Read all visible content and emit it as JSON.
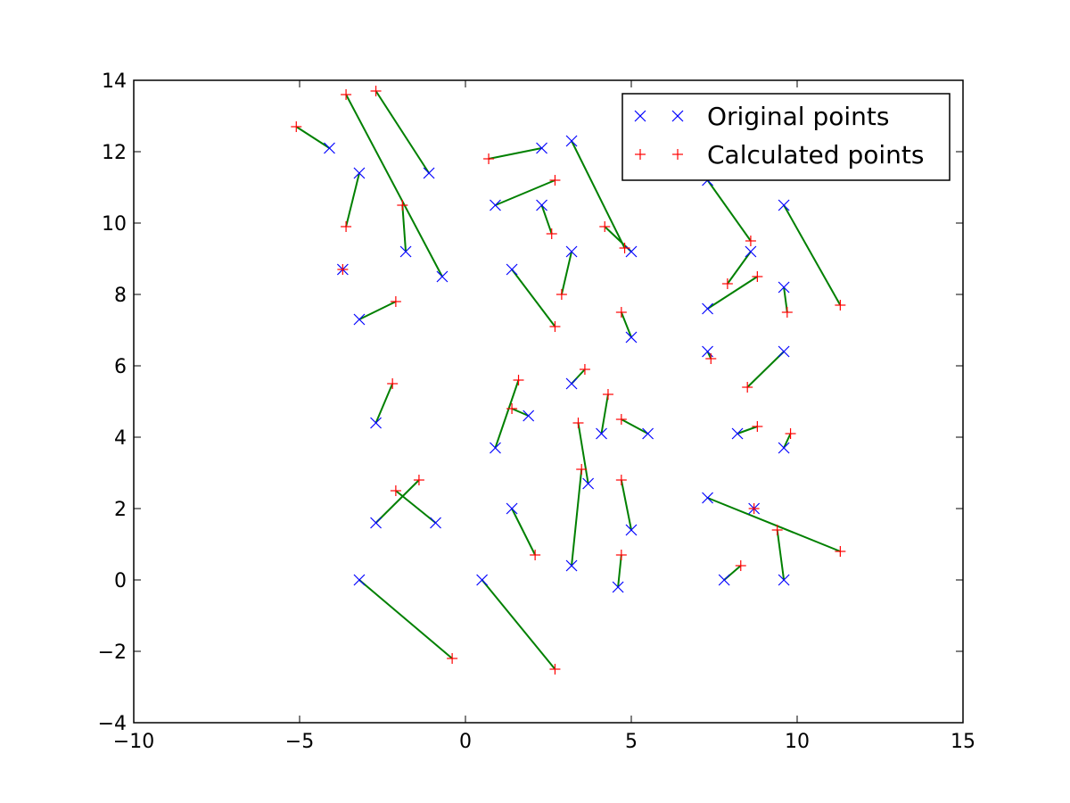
{
  "chart_data": {
    "type": "scatter",
    "title": "",
    "xlabel": "",
    "ylabel": "",
    "xlim": [
      -10,
      15
    ],
    "ylim": [
      -4,
      14
    ],
    "xticks": [
      -10,
      -5,
      0,
      5,
      10,
      15
    ],
    "yticks": [
      -4,
      -2,
      0,
      2,
      4,
      6,
      8,
      10,
      12,
      14
    ],
    "xtick_labels": [
      "−10",
      "−5",
      "0",
      "5",
      "10",
      "15"
    ],
    "ytick_labels": [
      "−4",
      "−2",
      "0",
      "2",
      "4",
      "6",
      "8",
      "10",
      "12",
      "14"
    ],
    "grid": false,
    "legend": {
      "position": "top-right",
      "entries": [
        "Original points",
        "Calculated points"
      ]
    },
    "colors": {
      "original": "#0000ff",
      "calculated": "#ff0000",
      "connector": "#008000"
    },
    "markers": {
      "original": "x",
      "calculated": "+"
    },
    "series": [
      {
        "name": "Original points",
        "points": [
          [
            -4.1,
            12.1
          ],
          [
            -3.2,
            11.4
          ],
          [
            -1.1,
            11.4
          ],
          [
            -1.8,
            9.2
          ],
          [
            -0.7,
            8.5
          ],
          [
            -3.7,
            8.7
          ],
          [
            -3.2,
            7.3
          ],
          [
            -2.7,
            4.4
          ],
          [
            -2.7,
            1.6
          ],
          [
            -0.9,
            1.6
          ],
          [
            -3.2,
            0.0
          ],
          [
            0.5,
            0.0
          ],
          [
            0.9,
            10.5
          ],
          [
            2.3,
            12.1
          ],
          [
            3.2,
            12.3
          ],
          [
            2.3,
            10.5
          ],
          [
            1.4,
            8.7
          ],
          [
            3.2,
            9.2
          ],
          [
            5.0,
            9.2
          ],
          [
            5.0,
            6.8
          ],
          [
            3.2,
            5.5
          ],
          [
            0.9,
            3.7
          ],
          [
            1.9,
            4.6
          ],
          [
            4.1,
            4.1
          ],
          [
            5.5,
            4.1
          ],
          [
            3.7,
            2.7
          ],
          [
            1.4,
            2.0
          ],
          [
            3.2,
            0.4
          ],
          [
            5.0,
            1.4
          ],
          [
            4.6,
            -0.2
          ],
          [
            7.3,
            11.2
          ],
          [
            9.6,
            10.5
          ],
          [
            8.6,
            9.2
          ],
          [
            7.3,
            7.6
          ],
          [
            9.6,
            8.2
          ],
          [
            7.3,
            6.4
          ],
          [
            9.6,
            6.4
          ],
          [
            8.2,
            4.1
          ],
          [
            9.6,
            3.7
          ],
          [
            7.3,
            2.3
          ],
          [
            8.7,
            2.0
          ],
          [
            7.8,
            0.0
          ],
          [
            9.6,
            0.0
          ]
        ]
      },
      {
        "name": "Calculated points",
        "points": [
          [
            -5.1,
            12.7
          ],
          [
            -3.6,
            9.9
          ],
          [
            -2.7,
            13.7
          ],
          [
            -1.9,
            10.5
          ],
          [
            -3.6,
            13.6
          ],
          [
            -3.7,
            8.7
          ],
          [
            -2.1,
            7.8
          ],
          [
            -2.2,
            5.5
          ],
          [
            -1.4,
            2.8
          ],
          [
            -2.1,
            2.5
          ],
          [
            -0.4,
            -2.2
          ],
          [
            2.7,
            -2.5
          ],
          [
            2.7,
            11.2
          ],
          [
            0.7,
            11.8
          ],
          [
            4.8,
            9.3
          ],
          [
            2.6,
            9.7
          ],
          [
            2.7,
            7.1
          ],
          [
            2.9,
            8.0
          ],
          [
            4.2,
            9.9
          ],
          [
            4.7,
            7.5
          ],
          [
            3.6,
            5.9
          ],
          [
            1.6,
            5.6
          ],
          [
            1.4,
            4.8
          ],
          [
            4.3,
            5.2
          ],
          [
            4.7,
            4.5
          ],
          [
            3.4,
            4.4
          ],
          [
            2.1,
            0.7
          ],
          [
            3.5,
            3.1
          ],
          [
            4.7,
            2.8
          ],
          [
            4.7,
            0.7
          ],
          [
            8.6,
            9.5
          ],
          [
            11.3,
            7.7
          ],
          [
            7.9,
            8.3
          ],
          [
            8.8,
            8.5
          ],
          [
            9.7,
            7.5
          ],
          [
            7.4,
            6.2
          ],
          [
            8.5,
            5.4
          ],
          [
            8.8,
            4.3
          ],
          [
            9.8,
            4.1
          ],
          [
            11.3,
            0.8
          ],
          [
            8.7,
            2.0
          ],
          [
            8.3,
            0.4
          ],
          [
            9.4,
            1.4
          ]
        ]
      }
    ]
  }
}
